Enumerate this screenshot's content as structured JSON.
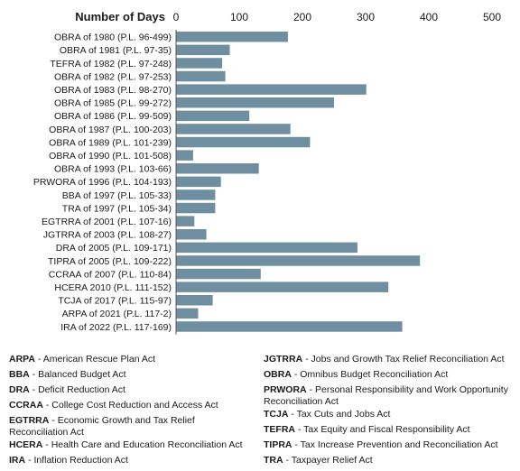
{
  "chart_data": {
    "type": "bar",
    "orientation": "horizontal",
    "axis_title": "Number of Days",
    "xlim": [
      0,
      500
    ],
    "x_ticks": [
      0,
      100,
      200,
      300,
      400,
      500
    ],
    "grid": false,
    "bar_color": "#6f8fa0",
    "categories": [
      "OBRA of 1980 (P.L. 96-499)",
      "OBRA of 1981 (P.L. 97-35)",
      "TEFRA of 1982 (P.L. 97-248)",
      "OBRA of 1982 (P.L. 97-253)",
      "OBRA of 1983 (P.L. 98-270)",
      "OBRA of 1985 (P.L. 99-272)",
      "OBRA of 1986 (P.L. 99-509)",
      "OBRA of 1987 (P.L. 100-203)",
      "OBRA of 1989 (P.L. 101-239)",
      "OBRA of 1990 (P.L. 101-508)",
      "OBRA of 1993 (P.L. 103-66)",
      "PRWORA of 1996 (P.L. 104-193)",
      "BBA of 1997 (P.L. 105-33)",
      "TRA of 1997 (P.L. 105-34)",
      "EGTRRA of 2001 (P.L. 107-16)",
      "JGTRRA of 2003 (P.L. 108-27)",
      "DRA of 2005 (P.L. 109-171)",
      "TIPRA of 2005 (P.L. 109-222)",
      "CCRAA of 2007 (P.L. 110-84)",
      "HCERA 2010 (P.L. 111-152)",
      "TCJA of 2017 (P.L. 115-97)",
      "ARPA of 2021 (P.L. 117-2)",
      "IRA of 2022 (P.L. 117-169)"
    ],
    "values": [
      177,
      85,
      73,
      78,
      301,
      250,
      116,
      181,
      212,
      27,
      131,
      71,
      62,
      62,
      29,
      48,
      287,
      386,
      134,
      336,
      58,
      35,
      358
    ]
  },
  "legend": {
    "left": [
      {
        "abbr": "ARPA",
        "text": "American Rescue Plan Act"
      },
      {
        "abbr": "BBA",
        "text": "Balanced Budget Act"
      },
      {
        "abbr": "DRA",
        "text": "Deficit Reduction Act"
      },
      {
        "abbr": "CCRAA",
        "text": "College Cost Reduction and Access Act"
      },
      {
        "abbr": "EGTRRA",
        "text": "Economic Growth and Tax Relief Reconciliation Act"
      },
      {
        "abbr": "HCERA",
        "text": "Health Care and Education Reconciliation Act"
      },
      {
        "abbr": "IRA",
        "text": "Inflation Reduction Act"
      }
    ],
    "right": [
      {
        "abbr": "JGTRRA",
        "text": "Jobs and Growth Tax Relief Reconciliation Act"
      },
      {
        "abbr": "OBRA",
        "text": "Omnibus Budget Reconciliation Act"
      },
      {
        "abbr": "PRWORA",
        "text": "Personal Responsibility and Work Opportunity Reconciliation Act"
      },
      {
        "abbr": "TCJA",
        "text": "Tax Cuts and Jobs Act"
      },
      {
        "abbr": "TEFRA",
        "text": "Tax Equity and Fiscal Responsibility Act"
      },
      {
        "abbr": "TIPRA",
        "text": "Tax Increase Prevention and Reconciliation Act"
      },
      {
        "abbr": "TRA",
        "text": "Taxpayer Relief Act"
      }
    ]
  }
}
